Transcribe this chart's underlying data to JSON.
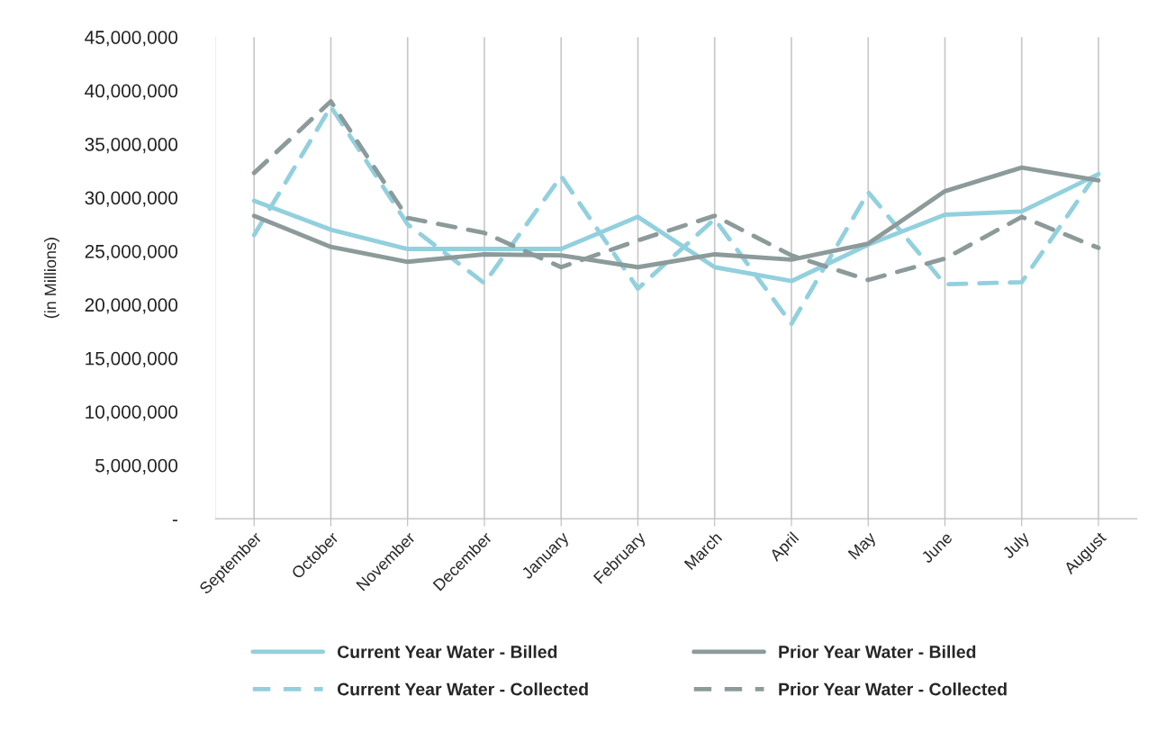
{
  "chart_data": {
    "type": "line",
    "ylabel": "(in Millions)",
    "categories": [
      "September",
      "October",
      "November",
      "December",
      "January",
      "February",
      "March",
      "April",
      "May",
      "June",
      "July",
      "August"
    ],
    "series": [
      {
        "name": "Current Year Water - Billed",
        "color": "#92d0de",
        "line_style": "solid",
        "values": [
          29700000,
          27000000,
          25200000,
          25200000,
          25200000,
          28200000,
          23500000,
          22200000,
          25600000,
          28400000,
          28700000,
          32200000
        ]
      },
      {
        "name": "Current Year Water - Collected",
        "color": "#92d0de",
        "line_style": "dashed",
        "values": [
          26500000,
          38500000,
          27500000,
          22000000,
          32000000,
          21500000,
          28000000,
          18200000,
          30500000,
          21900000,
          22100000,
          32500000
        ]
      },
      {
        "name": "Prior Year Water - Billed",
        "color": "#8c9a9a",
        "line_style": "solid",
        "values": [
          28300000,
          25400000,
          24000000,
          24700000,
          24600000,
          23500000,
          24700000,
          24200000,
          25700000,
          30600000,
          32800000,
          31600000
        ]
      },
      {
        "name": "Prior Year Water - Collected",
        "color": "#8c9a9a",
        "line_style": "dashed",
        "values": [
          32300000,
          39000000,
          28100000,
          26700000,
          23500000,
          26000000,
          28300000,
          24600000,
          22300000,
          24300000,
          28200000,
          25300000
        ]
      }
    ],
    "ylim": [
      0,
      45000000
    ],
    "yticks": [
      {
        "value": 0,
        "label": "-"
      },
      {
        "value": 5000000,
        "label": "5,000,000"
      },
      {
        "value": 10000000,
        "label": "10,000,000"
      },
      {
        "value": 15000000,
        "label": "15,000,000"
      },
      {
        "value": 20000000,
        "label": "20,000,000"
      },
      {
        "value": 25000000,
        "label": "25,000,000"
      },
      {
        "value": 30000000,
        "label": "30,000,000"
      },
      {
        "value": 35000000,
        "label": "35,000,000"
      },
      {
        "value": 40000000,
        "label": "40,000,000"
      },
      {
        "value": 45000000,
        "label": "45,000,000"
      }
    ],
    "grid": "x",
    "legend": "bottom"
  }
}
